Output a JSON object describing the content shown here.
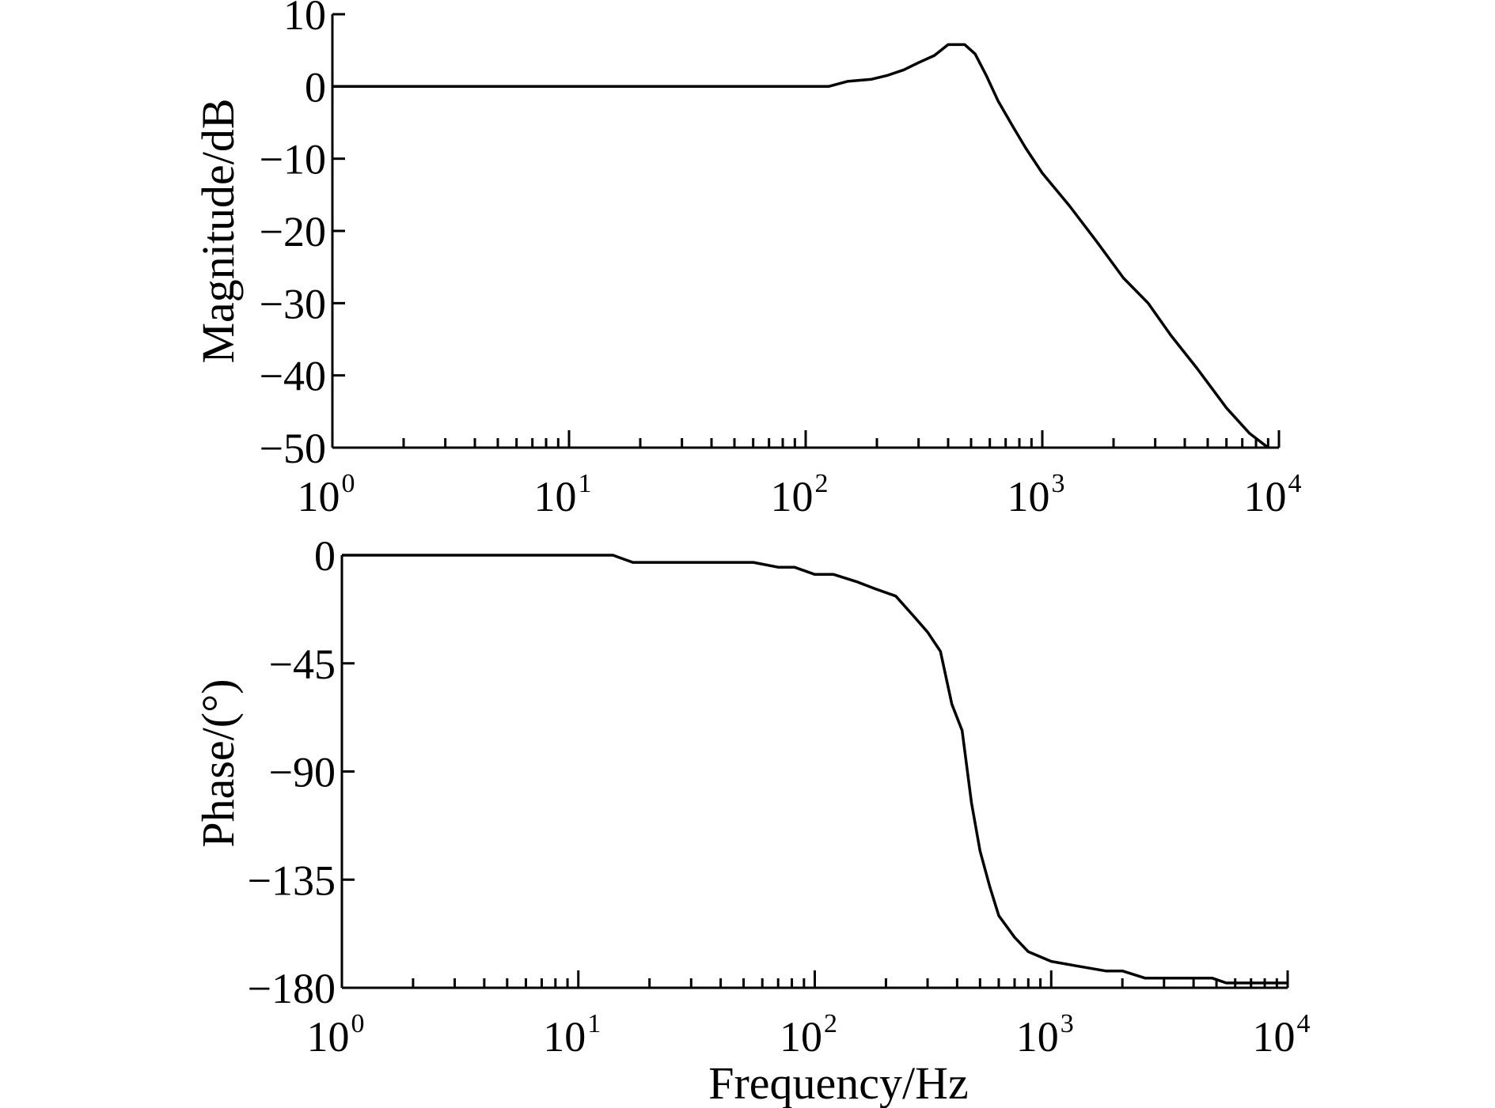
{
  "chart_data": [
    {
      "type": "line",
      "xlabel": "",
      "ylabel": "Magnitude/dB",
      "xscale": "log",
      "xlim": [
        1,
        10000
      ],
      "ylim": [
        -50,
        10
      ],
      "yticks": [
        {
          "value": 10,
          "label": "10"
        },
        {
          "value": 0,
          "label": "0"
        },
        {
          "value": -10,
          "label": "−10"
        },
        {
          "value": -20,
          "label": "−20"
        },
        {
          "value": -30,
          "label": "−30"
        },
        {
          "value": -40,
          "label": "−40"
        },
        {
          "value": -50,
          "label": "−50"
        }
      ],
      "xticks": [
        {
          "value": 1,
          "base": "10",
          "exp": "0"
        },
        {
          "value": 10,
          "base": "10",
          "exp": "1"
        },
        {
          "value": 100,
          "base": "10",
          "exp": "2"
        },
        {
          "value": 1000,
          "base": "10",
          "exp": "3"
        },
        {
          "value": 10000,
          "base": "10",
          "exp": "4"
        }
      ],
      "grid": false,
      "series": [
        {
          "x": [
            1,
            10,
            100,
            125,
            150,
            190,
            220,
            260,
            300,
            350,
            400,
            470,
            520,
            580,
            650,
            750,
            850,
            1000,
            1300,
            1700,
            2200,
            2800,
            3500,
            4500,
            6000,
            7500,
            9000
          ],
          "y": [
            0,
            0,
            0,
            0,
            0.7,
            1,
            1.5,
            2.3,
            3.3,
            4.3,
            5.8,
            5.8,
            4.5,
            1.5,
            -2,
            -5.5,
            -8.5,
            -12,
            -16.5,
            -21.5,
            -26.5,
            -30,
            -34.5,
            -39,
            -44.5,
            -48,
            -50
          ]
        }
      ]
    },
    {
      "type": "line",
      "xlabel": "Frequency/Hz",
      "ylabel": "Phase/(°)",
      "xscale": "log",
      "xlim": [
        1,
        10000
      ],
      "ylim": [
        -180,
        0
      ],
      "yticks": [
        {
          "value": 0,
          "label": "0"
        },
        {
          "value": -45,
          "label": "−45"
        },
        {
          "value": -90,
          "label": "−90"
        },
        {
          "value": -135,
          "label": "−135"
        },
        {
          "value": -180,
          "label": "−180"
        }
      ],
      "xticks": [
        {
          "value": 1,
          "base": "10",
          "exp": "0"
        },
        {
          "value": 10,
          "base": "10",
          "exp": "1"
        },
        {
          "value": 100,
          "base": "10",
          "exp": "2"
        },
        {
          "value": 1000,
          "base": "10",
          "exp": "3"
        },
        {
          "value": 10000,
          "base": "10",
          "exp": "4"
        }
      ],
      "grid": false,
      "series": [
        {
          "x": [
            1,
            5,
            14,
            17,
            30,
            55,
            70,
            82,
            100,
            120,
            150,
            180,
            220,
            260,
            300,
            340,
            380,
            420,
            460,
            500,
            550,
            600,
            700,
            800,
            1000,
            1300,
            1700,
            2000,
            2500,
            3000,
            4000,
            4800,
            5500,
            7000,
            10000
          ],
          "y": [
            0,
            0,
            0,
            -3,
            -3,
            -3,
            -5,
            -5,
            -8,
            -8,
            -11,
            -14,
            -17,
            -25,
            -32,
            -40,
            -62,
            -73,
            -103,
            -123,
            -138,
            -150,
            -159,
            -165,
            -169,
            -171,
            -173,
            -173,
            -176,
            -176,
            -176,
            -176,
            -178,
            -178,
            -178
          ]
        }
      ]
    }
  ]
}
